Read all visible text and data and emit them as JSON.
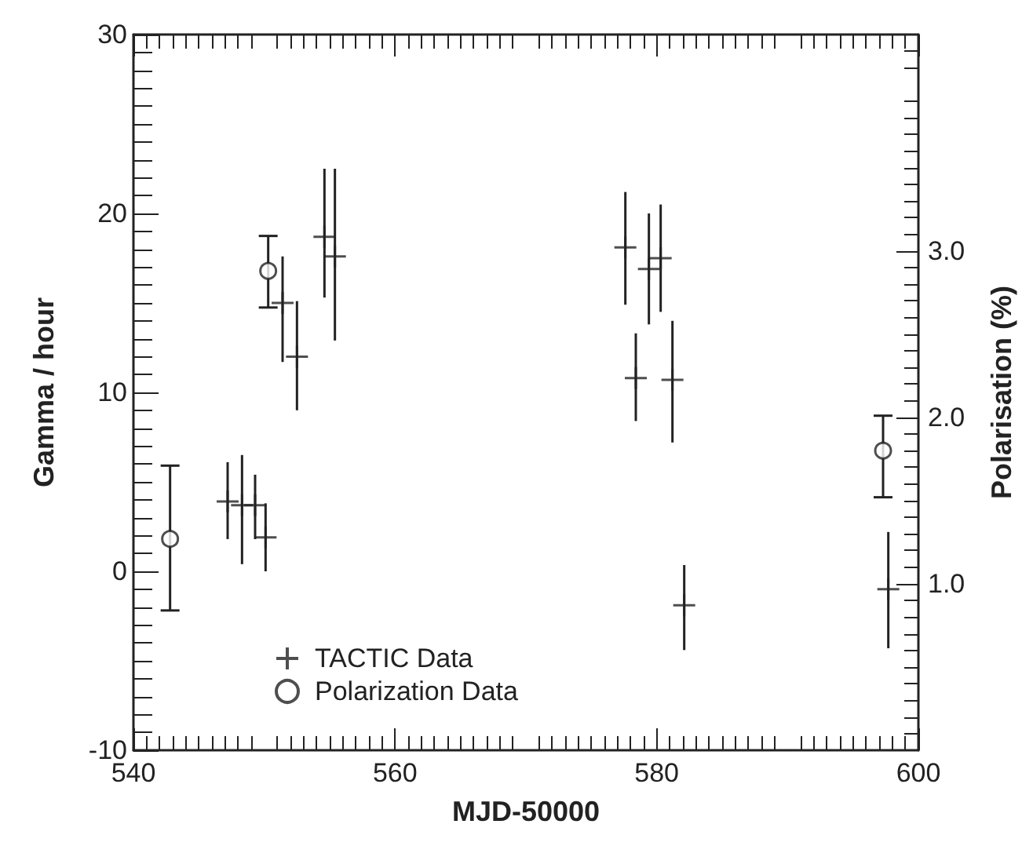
{
  "chart_data": {
    "type": "scatter",
    "xlabel": "MJD-50000",
    "ylabel": "Gamma / hour",
    "y2label": "Polarisation (%)",
    "xlim": [
      540,
      600
    ],
    "xticks": [
      540,
      560,
      580,
      600
    ],
    "ylim": [
      -10,
      30
    ],
    "yticks": [
      -10,
      0,
      10,
      20,
      30
    ],
    "y2lim": [
      0,
      4.3
    ],
    "y2ticks": [
      {
        "value": 1,
        "label": "1.0"
      },
      {
        "value": 2,
        "label": "2.0"
      },
      {
        "value": 3,
        "label": "3.0"
      }
    ],
    "grid": false,
    "legend": "bottom left",
    "series": [
      {
        "name": "TACTIC Data",
        "color": "#222222",
        "marker": "cross",
        "x": [
          547.2,
          548.3,
          549.3,
          550.1,
          551.4,
          552.5,
          554.6,
          555.4,
          577.6,
          578.4,
          579.4,
          580.3,
          581.2,
          582.1,
          597.7
        ],
        "values": [
          3.9,
          3.7,
          3.7,
          1.9,
          15,
          12,
          18.7,
          17.6,
          18.1,
          10.8,
          16.9,
          17.5,
          10.7,
          -1.9,
          -1.0
        ],
        "errors": [
          [
            1.8,
            6.1
          ],
          [
            0.4,
            6.5
          ],
          [
            1.8,
            5.4
          ],
          [
            0,
            3.8
          ],
          [
            11.7,
            17.6
          ],
          [
            9,
            15.1
          ],
          [
            15.3,
            22.5
          ],
          [
            12.9,
            22.5
          ],
          [
            14.9,
            21.2
          ],
          [
            8.4,
            13.3
          ],
          [
            13.8,
            20
          ],
          [
            14.5,
            20.5
          ],
          [
            7.2,
            14
          ],
          [
            -4.4,
            0.35
          ],
          [
            -4.3,
            2.2
          ]
        ]
      },
      {
        "name": "Polarization Data",
        "color": "#222222",
        "marker": "circle",
        "axis": "y2",
        "x": [
          542.8,
          550.3,
          597.3
        ],
        "values": [
          1.27,
          2.88,
          1.8
        ],
        "errors": [
          [
            0.84,
            1.71
          ],
          [
            2.66,
            3.09
          ],
          [
            1.52,
            2.01
          ]
        ]
      }
    ]
  }
}
